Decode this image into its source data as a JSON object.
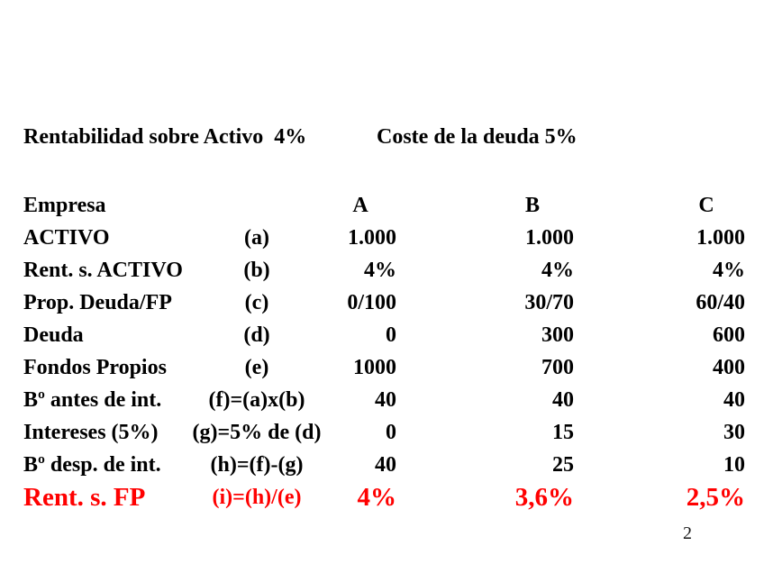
{
  "header": {
    "left": "Rentabilidad sobre Activo  4%",
    "right": "Coste de la deuda 5%"
  },
  "table": {
    "rows": [
      {
        "style": "header",
        "label": "Empresa",
        "formula": "",
        "a": "A",
        "b": "B",
        "c": "C"
      },
      {
        "style": "normal",
        "label": "ACTIVO",
        "formula": "(a)",
        "a": "1.000",
        "b": "1.000",
        "c": "1.000"
      },
      {
        "style": "normal",
        "label": "Rent. s. ACTIVO",
        "formula": "(b)",
        "a": "4%",
        "b": "4%",
        "c": "4%"
      },
      {
        "style": "normal",
        "label": "Prop. Deuda/FP",
        "formula": "(c)",
        "a": "0/100",
        "b": "30/70",
        "c": "60/40"
      },
      {
        "style": "normal",
        "label": "Deuda",
        "formula": "(d)",
        "a": "0",
        "b": "300",
        "c": "600"
      },
      {
        "style": "normal",
        "label": "Fondos Propios",
        "formula": "(e)",
        "a": "1000",
        "b": "700",
        "c": "400"
      },
      {
        "style": "normal",
        "label": "Bº antes de int.",
        "formula": "(f)=(a)x(b)",
        "a": "40",
        "b": "40",
        "c": "40"
      },
      {
        "style": "normal",
        "label": "Intereses (5%)",
        "formula": "(g)=5% de (d)",
        "a": "0",
        "b": "15",
        "c": "30"
      },
      {
        "style": "normal",
        "label": "Bº desp. de int.",
        "formula": "(h)=(f)-(g)",
        "a": "40",
        "b": "25",
        "c": "10"
      },
      {
        "style": "red",
        "label": "Rent. s. FP",
        "formula": "(i)=(h)/(e)",
        "a": "4%",
        "b": "3,6%",
        "c": "2,5%"
      }
    ]
  },
  "page_number": "2",
  "colors": {
    "text": "#000000",
    "accent_red": "#ff0000",
    "background": "#ffffff"
  }
}
